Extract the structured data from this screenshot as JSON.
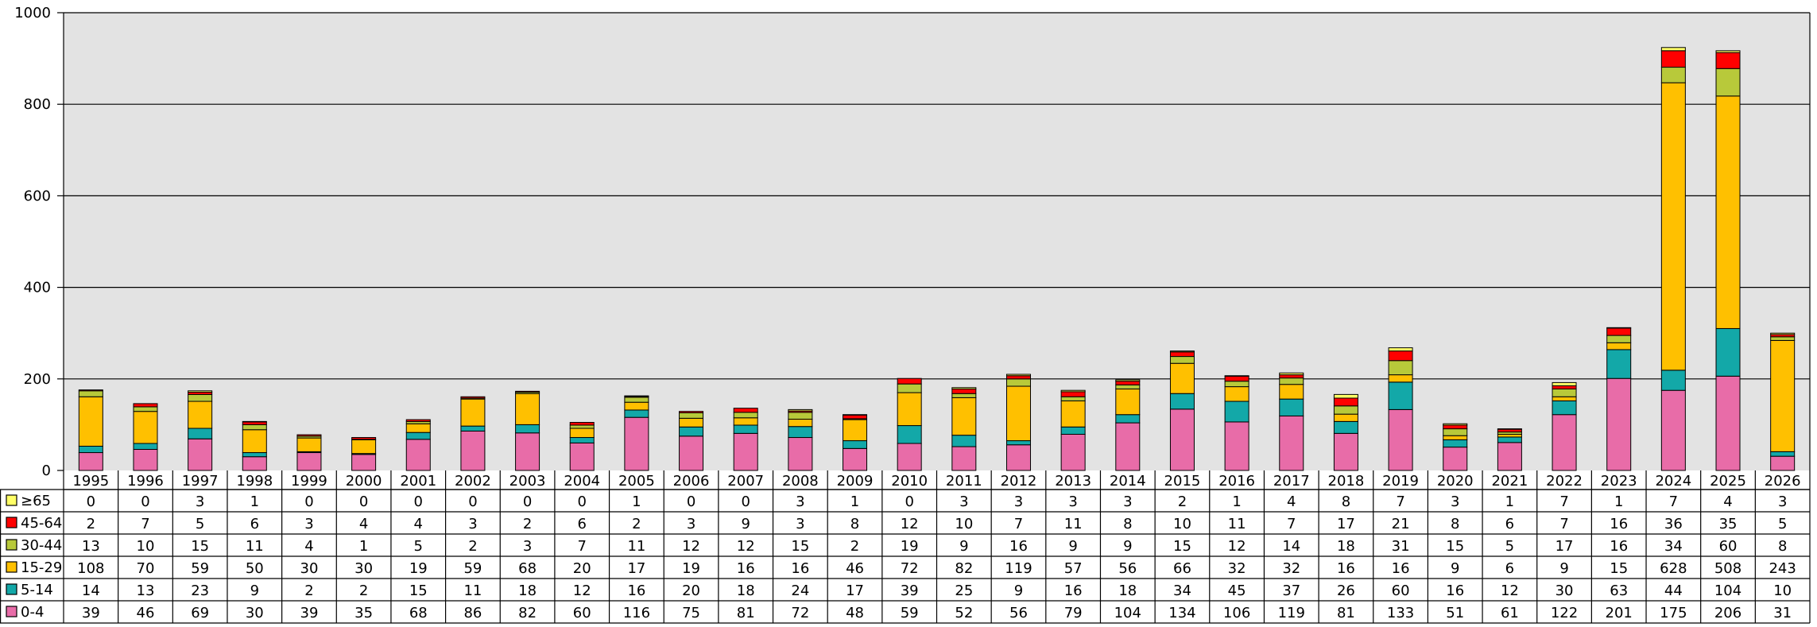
{
  "chart_data": {
    "type": "bar",
    "stacked": true,
    "grid": true,
    "legend": "data-table-left",
    "ylim": [
      0,
      1000
    ],
    "y_ticks": [
      0,
      200,
      400,
      600,
      800,
      1000
    ],
    "y_tick_labels": [
      "0",
      "200",
      "400",
      "600",
      "800",
      "1000"
    ],
    "categories": [
      "1995",
      "1996",
      "1997",
      "1998",
      "1999",
      "2000",
      "2001",
      "2002",
      "2003",
      "2004",
      "2005",
      "2006",
      "2007",
      "2008",
      "2009",
      "2010",
      "2011",
      "2012",
      "2013",
      "2014",
      "2015",
      "2016",
      "2017",
      "2018",
      "2019",
      "2020",
      "2021",
      "2022",
      "2023",
      "2024",
      "2025",
      "2026"
    ],
    "series": [
      {
        "name": "0-4",
        "color": "#e86ca8",
        "values": [
          39,
          46,
          69,
          30,
          39,
          35,
          68,
          86,
          82,
          60,
          116,
          75,
          81,
          72,
          48,
          59,
          52,
          56,
          79,
          104,
          134,
          106,
          119,
          81,
          133,
          51,
          61,
          122,
          201,
          175,
          206,
          31
        ]
      },
      {
        "name": "5-14",
        "color": "#13a8a8",
        "values": [
          14,
          13,
          23,
          9,
          2,
          2,
          15,
          11,
          18,
          12,
          16,
          20,
          18,
          24,
          17,
          39,
          25,
          9,
          16,
          18,
          34,
          45,
          37,
          26,
          60,
          16,
          12,
          30,
          63,
          44,
          104,
          10
        ]
      },
      {
        "name": "15-29",
        "color": "#ffc000",
        "values": [
          108,
          70,
          59,
          50,
          30,
          30,
          19,
          59,
          68,
          20,
          17,
          19,
          16,
          16,
          46,
          72,
          82,
          119,
          57,
          56,
          66,
          32,
          32,
          16,
          16,
          9,
          6,
          9,
          15,
          628,
          508,
          243
        ]
      },
      {
        "name": "30-44",
        "color": "#b8c93a",
        "values": [
          13,
          10,
          15,
          11,
          4,
          1,
          5,
          2,
          3,
          7,
          11,
          12,
          12,
          15,
          2,
          19,
          9,
          16,
          9,
          9,
          15,
          12,
          14,
          18,
          31,
          15,
          5,
          17,
          16,
          34,
          60,
          8
        ]
      },
      {
        "name": "45-64",
        "color": "#ff0000",
        "values": [
          2,
          7,
          5,
          6,
          3,
          4,
          4,
          3,
          2,
          6,
          2,
          3,
          9,
          3,
          8,
          12,
          10,
          7,
          11,
          8,
          10,
          11,
          7,
          17,
          21,
          8,
          6,
          7,
          16,
          36,
          35,
          5
        ]
      },
      {
        "name": "≥65",
        "color": "#ffff66",
        "values": [
          0,
          0,
          3,
          1,
          0,
          0,
          0,
          0,
          0,
          0,
          1,
          0,
          0,
          3,
          1,
          0,
          3,
          3,
          3,
          3,
          2,
          1,
          4,
          8,
          7,
          3,
          1,
          7,
          1,
          7,
          4,
          3
        ]
      }
    ]
  }
}
